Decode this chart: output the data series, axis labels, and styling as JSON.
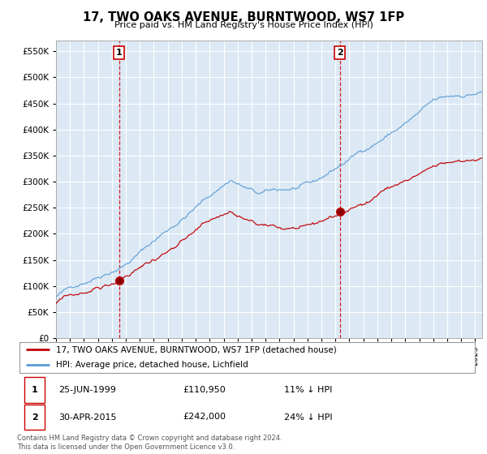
{
  "title": "17, TWO OAKS AVENUE, BURNTWOOD, WS7 1FP",
  "subtitle": "Price paid vs. HM Land Registry's House Price Index (HPI)",
  "legend_line1": "17, TWO OAKS AVENUE, BURNTWOOD, WS7 1FP (detached house)",
  "legend_line2": "HPI: Average price, detached house, Lichfield",
  "note": "Contains HM Land Registry data © Crown copyright and database right 2024.\nThis data is licensed under the Open Government Licence v3.0.",
  "purchase1_date": "25-JUN-1999",
  "purchase1_price": 110950,
  "purchase1_label": "11% ↓ HPI",
  "purchase1_year": 1999.48,
  "purchase2_date": "30-APR-2015",
  "purchase2_price": 242000,
  "purchase2_label": "24% ↓ HPI",
  "purchase2_year": 2015.33,
  "ylim": [
    0,
    570000
  ],
  "yticks": [
    0,
    50000,
    100000,
    150000,
    200000,
    250000,
    300000,
    350000,
    400000,
    450000,
    500000,
    550000
  ],
  "hpi_color": "#5b9bd5",
  "price_color": "#c00000",
  "vline_color": "#cc0000",
  "background_color": "#dce9f5",
  "plot_bg": "#dce9f5",
  "grid_color": "#ffffff",
  "fig_bg": "#ffffff"
}
